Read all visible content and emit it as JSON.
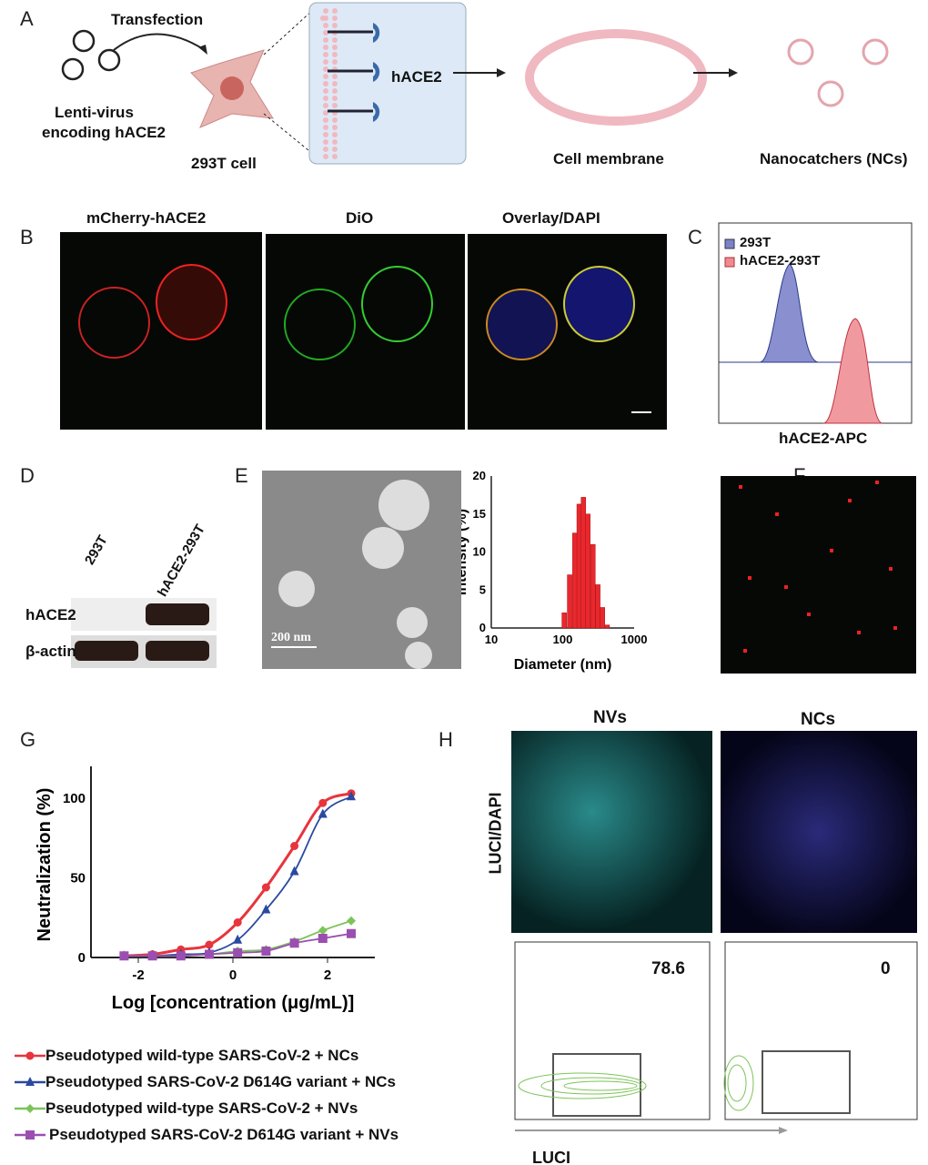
{
  "panels": {
    "A": {
      "letter": "A",
      "transfection": "Transfection",
      "lenti1": "Lenti-virus",
      "lenti2": "encoding hACE2",
      "cell": "293T cell",
      "receptor": "hACE2",
      "membrane": "Cell membrane",
      "ncs": "Nanocatchers (NCs)"
    },
    "B": {
      "letter": "B",
      "titles": [
        "mCherry-hACE2",
        "DiO",
        "Overlay/DAPI"
      ]
    },
    "C": {
      "letter": "C",
      "legend": [
        "293T",
        "hACE2-293T"
      ],
      "xlabel": "hACE2-APC",
      "colors": [
        "#7b83c8",
        "#f08a90"
      ]
    },
    "D": {
      "letter": "D",
      "lanes": [
        "293T",
        "hACE2-293T"
      ],
      "rows": [
        "hACE2",
        "β-actin"
      ]
    },
    "E": {
      "letter": "E",
      "scalebar": "200 nm"
    },
    "F": {
      "letter": "F"
    },
    "G": {
      "letter": "G"
    },
    "H": {
      "letter": "H",
      "titles": [
        "NVs",
        "NCs"
      ],
      "ylabel": "LUCI/DAPI",
      "values": [
        "78.6",
        "0"
      ],
      "xlabel": "LUCI"
    }
  },
  "chart_data": [
    {
      "type": "bar",
      "panel": "E",
      "xlabel": "Diameter (nm)",
      "ylabel": "Intensity (%)",
      "xscale": "log",
      "xlim": [
        10,
        1000
      ],
      "ylim": [
        0,
        20
      ],
      "xticks": [
        "10",
        "100",
        "1000"
      ],
      "yticks": [
        "0",
        "5",
        "10",
        "15",
        "20"
      ],
      "bin_centers": [
        105,
        125,
        148,
        170,
        195,
        225,
        265,
        310,
        360,
        420
      ],
      "values": [
        2,
        7,
        12.5,
        16.3,
        17.2,
        15,
        11,
        5.7,
        2.7,
        0.4
      ],
      "color": "#e8282e"
    },
    {
      "type": "line",
      "panel": "G",
      "xlabel": "Log [concentration (μg/mL)]",
      "ylabel": "Neutralization (%)",
      "xlim": [
        -3,
        3
      ],
      "ylim": [
        0,
        120
      ],
      "xticks": [
        "-2",
        "0",
        "2"
      ],
      "yticks": [
        "0",
        "50",
        "100"
      ],
      "x": [
        -2.3,
        -1.7,
        -1.1,
        -0.5,
        0.1,
        0.7,
        1.3,
        1.9,
        2.5
      ],
      "series": [
        {
          "name": "Pseudotyped wild-type SARS-CoV-2 + NCs",
          "color": "#e8343c",
          "marker": "circle",
          "values": [
            1,
            2,
            5,
            8,
            22,
            44,
            70,
            97,
            103
          ]
        },
        {
          "name": "Pseudotyped SARS-CoV-2  D614G variant + NCs",
          "color": "#2a4aa0",
          "marker": "triangle",
          "values": [
            1,
            1,
            2,
            3,
            11,
            30,
            54,
            90,
            101
          ]
        },
        {
          "name": "Pseudotyped wild-type SARS-CoV-2 + NVs",
          "color": "#7cc45a",
          "marker": "diamond",
          "values": [
            1,
            1,
            1,
            2,
            4,
            5,
            10,
            17,
            23
          ]
        },
        {
          "name": "Pseudotyped SARS-CoV-2  D614G variant + NVs",
          "color": "#9a4fb0",
          "marker": "square",
          "values": [
            1,
            1,
            1,
            2,
            3,
            4,
            9,
            12,
            15
          ]
        }
      ]
    }
  ]
}
